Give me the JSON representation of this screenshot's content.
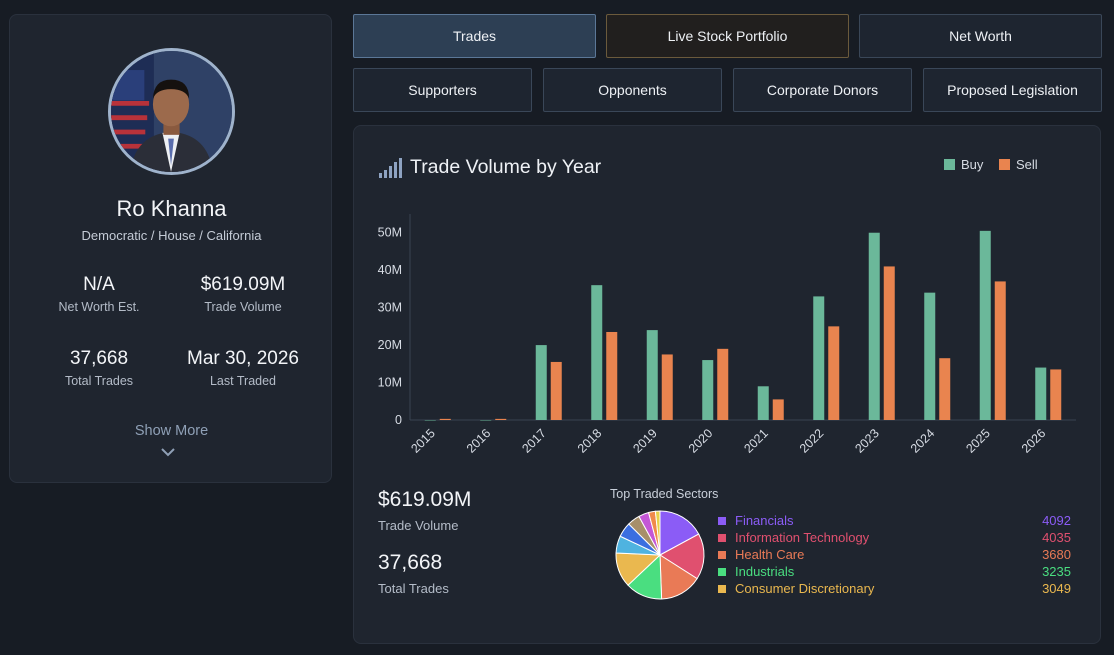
{
  "profile": {
    "name": "Ro Khanna",
    "affiliation": "Democratic / House / California",
    "stats": [
      {
        "value": "N/A",
        "label": "Net Worth Est."
      },
      {
        "value": "$619.09M",
        "label": "Trade Volume"
      },
      {
        "value": "37,668",
        "label": "Total Trades"
      },
      {
        "value": "Mar 30, 2026",
        "label": "Last Traded"
      }
    ],
    "show_more": "Show More"
  },
  "tabs": {
    "row1": [
      "Trades",
      "Live Stock Portfolio",
      "Net Worth"
    ],
    "row2": [
      "Supporters",
      "Opponents",
      "Corporate Donors",
      "Proposed Legislation"
    ]
  },
  "panel": {
    "title": "Trade Volume by Year",
    "trade_volume_value": "$619.09M",
    "trade_volume_label": "Trade Volume",
    "total_trades_value": "37,668",
    "total_trades_label": "Total Trades",
    "sectors_title": "Top Traded Sectors",
    "sectors": [
      {
        "name": "Financials",
        "count": "4092",
        "color": "#8b5cf6"
      },
      {
        "name": "Information Technology",
        "count": "4035",
        "color": "#e0506f"
      },
      {
        "name": "Health Care",
        "count": "3680",
        "color": "#e97a56"
      },
      {
        "name": "Industrials",
        "count": "3235",
        "color": "#4ade80"
      },
      {
        "name": "Consumer Discretionary",
        "count": "3049",
        "color": "#eab84f"
      }
    ],
    "pie_colors": [
      "#8b5cf6",
      "#e0506f",
      "#e97a56",
      "#4ade80",
      "#eab84f",
      "#4fb3e0",
      "#3b6ee0",
      "#a78f6a",
      "#c457d6",
      "#f08a4b",
      "#e8d24a"
    ]
  },
  "chart_data": {
    "type": "bar",
    "categories": [
      "2015",
      "2016",
      "2017",
      "2018",
      "2019",
      "2020",
      "2021",
      "2022",
      "2023",
      "2024",
      "2025",
      "2026"
    ],
    "series": [
      {
        "name": "Buy",
        "color": "#6bb89a",
        "values": [
          0,
          0,
          20,
          36,
          24,
          16,
          9,
          33,
          50,
          34,
          50.5,
          14
        ]
      },
      {
        "name": "Sell",
        "color": "#e9844f",
        "values": [
          0.3,
          0.3,
          15.5,
          23.5,
          17.5,
          19,
          5.5,
          25,
          41,
          16.5,
          37,
          13.5
        ]
      }
    ],
    "yticks": [
      "0",
      "10M",
      "20M",
      "30M",
      "40M",
      "50M"
    ],
    "ylim": [
      0,
      55
    ],
    "ylabel": "",
    "xlabel": ""
  }
}
